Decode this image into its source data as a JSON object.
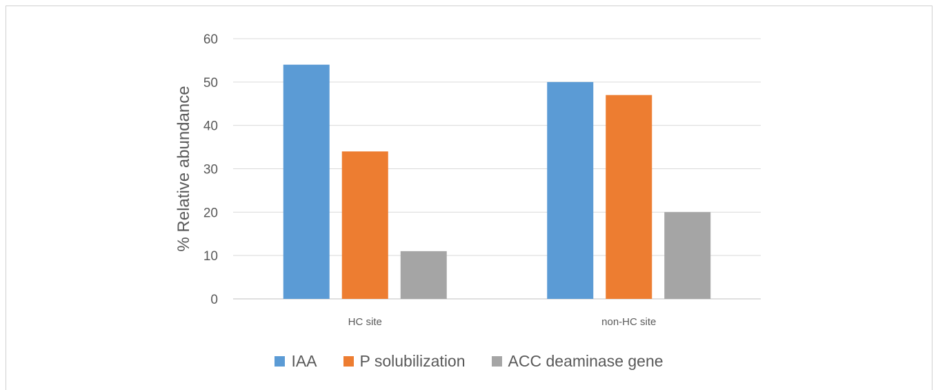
{
  "chart_data": {
    "type": "bar",
    "categories": [
      "HC site",
      "non-HC site"
    ],
    "series": [
      {
        "name": "IAA",
        "values": [
          54,
          50
        ],
        "color": "#5b9bd5"
      },
      {
        "name": "P solubilization",
        "values": [
          34,
          47
        ],
        "color": "#ed7d31"
      },
      {
        "name": "ACC deaminase gene",
        "values": [
          11,
          20
        ],
        "color": "#a5a5a5"
      }
    ],
    "title": "",
    "xlabel": "",
    "ylabel": "% Relative abundance",
    "ylim": [
      0,
      60
    ],
    "yticks": [
      0,
      10,
      20,
      30,
      40,
      50,
      60
    ],
    "grid": true,
    "legend_position": "bottom"
  }
}
